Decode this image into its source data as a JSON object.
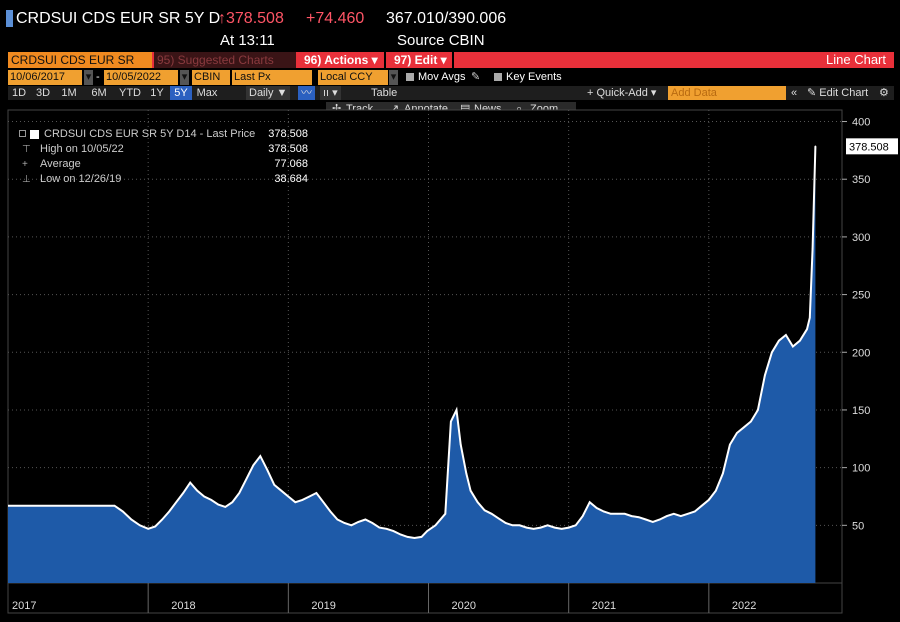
{
  "header": {
    "ticker": "CRDSUI CDS EUR SR 5Y D",
    "last": "↑378.508",
    "change": "+74.460",
    "range": "367.010/390.006",
    "at": "At 13:11",
    "source": "Source CBIN"
  },
  "toolbar1": {
    "security": "CRDSUI CDS EUR SR",
    "suggested": "95) Suggested Charts",
    "actions": "96) Actions ▾",
    "edit": "97) Edit ▾",
    "chart_type": "Line Chart"
  },
  "toolbar2": {
    "start_date": "10/06/2017",
    "end_date": "10/05/2022",
    "dash": "-",
    "source": "CBIN",
    "field": "Last Px",
    "currency": "Local CCY",
    "mov_avgs": "Mov Avgs",
    "key_events": "Key Events"
  },
  "toolbar3": {
    "periods": [
      "1D",
      "3D",
      "1M",
      "6M",
      "YTD",
      "1Y",
      "5Y",
      "Max"
    ],
    "selected_period": "5Y",
    "frequency": "Daily ▼",
    "table": "Table",
    "quick_add": "+ Quick-Add ▾",
    "add_data": "Add Data",
    "edit_chart": "✎ Edit Chart"
  },
  "toolbar4": {
    "track": "Track",
    "annotate": "Annotate",
    "news": "News",
    "zoom": "Zoom"
  },
  "legend": {
    "series": "CRDSUI CDS EUR SR 5Y D14 - Last Price",
    "series_value": "378.508",
    "high_label": "High on 10/05/22",
    "high_value": "378.508",
    "avg_label": "Average",
    "avg_value": "77.068",
    "low_label": "Low on 12/26/19",
    "low_value": "38.684"
  },
  "chart_data": {
    "type": "area",
    "title": "CRDSUI CDS EUR SR 5Y D14 - Last Price",
    "ylim": [
      0,
      410
    ],
    "y_ticks": [
      "50",
      "100",
      "150",
      "200",
      "250",
      "300",
      "350",
      "400"
    ],
    "x_labels": [
      "2017",
      "2018",
      "2019",
      "2020",
      "2021",
      "2022"
    ],
    "last_value_label": "378.508",
    "grid": true,
    "fill_color": "#1e5aa8",
    "line_color": "#ffffff",
    "series": [
      {
        "x": [
          2017.76,
          2017.82,
          2017.88,
          2017.94,
          2018.0,
          2018.05,
          2018.1,
          2018.15,
          2018.2,
          2018.25,
          2018.3,
          2018.35,
          2018.4,
          2018.45,
          2018.5,
          2018.55,
          2018.6,
          2018.65,
          2018.7,
          2018.75,
          2018.8,
          2018.85,
          2018.9,
          2018.95,
          2019.0,
          2019.05,
          2019.1,
          2019.15,
          2019.2,
          2019.25,
          2019.3,
          2019.35,
          2019.4,
          2019.45,
          2019.5,
          2019.55,
          2019.6,
          2019.65,
          2019.7,
          2019.75,
          2019.8,
          2019.85,
          2019.9,
          2019.95,
          2019.99,
          2020.05,
          2020.12,
          2020.16,
          2020.2,
          2020.23,
          2020.27,
          2020.3,
          2020.35,
          2020.4,
          2020.45,
          2020.5,
          2020.55,
          2020.6,
          2020.65,
          2020.7,
          2020.75,
          2020.8,
          2020.85,
          2020.9,
          2020.95,
          2021.0,
          2021.05,
          2021.1,
          2021.15,
          2021.2,
          2021.25,
          2021.3,
          2021.35,
          2021.4,
          2021.45,
          2021.5,
          2021.55,
          2021.6,
          2021.65,
          2021.7,
          2021.75,
          2021.8,
          2021.85,
          2021.9,
          2021.95,
          2022.0,
          2022.05,
          2022.1,
          2022.15,
          2022.2,
          2022.25,
          2022.3,
          2022.35,
          2022.4,
          2022.45,
          2022.5,
          2022.55,
          2022.6,
          2022.65,
          2022.7,
          2022.72,
          2022.74,
          2022.76
        ],
        "values": [
          67,
          62,
          55,
          50,
          47,
          49,
          55,
          62,
          70,
          78,
          87,
          80,
          75,
          72,
          68,
          66,
          70,
          78,
          90,
          102,
          110,
          98,
          85,
          80,
          75,
          70,
          72,
          75,
          78,
          70,
          62,
          55,
          52,
          50,
          53,
          55,
          52,
          48,
          47,
          45,
          42,
          40,
          39,
          40,
          45,
          50,
          60,
          140,
          150,
          120,
          95,
          80,
          70,
          63,
          60,
          56,
          52,
          50,
          50,
          48,
          47,
          48,
          50,
          48,
          47,
          48,
          50,
          58,
          70,
          65,
          62,
          60,
          60,
          60,
          58,
          57,
          55,
          53,
          55,
          58,
          60,
          58,
          60,
          62,
          67,
          72,
          80,
          95,
          120,
          130,
          135,
          140,
          150,
          180,
          200,
          210,
          215,
          205,
          210,
          220,
          230,
          290,
          378.508
        ]
      }
    ]
  }
}
